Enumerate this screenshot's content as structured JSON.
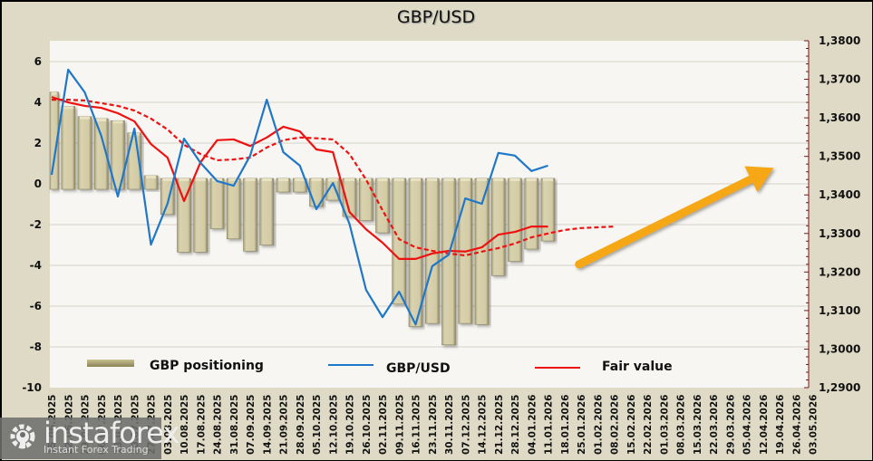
{
  "chart_data": {
    "type": "bar",
    "title": "GBP/USD",
    "xlabel": "",
    "ylabel_left": "",
    "ylabel_right": "",
    "left_axis": {
      "min": -10,
      "max": 7,
      "ticks": [
        6,
        4,
        2,
        0,
        -2,
        -4,
        -6,
        -8,
        -10
      ],
      "tick_labels": [
        "6",
        "4",
        "2",
        "0",
        "-2",
        "-4",
        "-6",
        "-8",
        "-10"
      ]
    },
    "right_axis": {
      "min": 1.29,
      "max": 1.38,
      "ticks": [
        1.38,
        1.37,
        1.36,
        1.35,
        1.34,
        1.33,
        1.32,
        1.31,
        1.3,
        1.29
      ],
      "tick_labels": [
        "1,3800",
        "1,3700",
        "1,3600",
        "1,3500",
        "1,3400",
        "1,3300",
        "1,3200",
        "1,3100",
        "1,3000",
        "1,2900"
      ]
    },
    "grid": true,
    "categories": [
      "15.06.2025",
      "22.06.2025",
      "29.06.2025",
      "06.07.2025",
      "13.07.2025",
      "20.07.2025",
      "27.07.2025",
      "03.08.2025",
      "10.08.2025",
      "17.08.2025",
      "24.08.2025",
      "31.08.2025",
      "07.09.2025",
      "14.09.2025",
      "21.09.2025",
      "28.09.2025",
      "05.10.2025",
      "12.10.2025",
      "19.10.2025",
      "26.10.2025",
      "02.11.2025",
      "09.11.2025",
      "16.11.2025",
      "23.11.2025",
      "30.11.2025",
      "07.12.2025",
      "14.12.2025",
      "21.12.2025",
      "28.12.2025",
      "04.01.2026",
      "11.01.2026",
      "18.01.2026",
      "25.01.2026",
      "01.02.2026",
      "08.02.2026",
      "15.02.2026",
      "22.02.2026",
      "01.03.2026",
      "08.03.2026",
      "15.03.2026",
      "22.03.2026",
      "29.03.2026",
      "05.04.2026",
      "12.04.2026",
      "19.04.2026",
      "26.04.2026",
      "03.05.2026"
    ],
    "series": [
      {
        "name": "GBP positioning",
        "type": "bar",
        "axis": "left",
        "color": "#c9c19a",
        "values": [
          4.5,
          3.8,
          3.3,
          3.2,
          3.1,
          2.5,
          0.4,
          -1.5,
          -3.35,
          -3.35,
          -2.2,
          -2.7,
          -3.3,
          -3.0,
          -0.4,
          -0.4,
          -1.1,
          -0.8,
          -1.6,
          -1.8,
          -2.4,
          -5.9,
          -7.0,
          -6.85,
          -7.9,
          -6.85,
          -6.9,
          -4.5,
          -3.8,
          -3.2,
          -2.8
        ]
      },
      {
        "name": "GBP/USD",
        "type": "line",
        "axis": "right",
        "color": "#1f77c8",
        "values": [
          1.3452,
          1.3725,
          1.3666,
          1.3553,
          1.3396,
          1.3572,
          1.3271,
          1.3377,
          1.3546,
          1.3483,
          1.3436,
          1.3424,
          1.3502,
          1.3647,
          1.3511,
          1.3476,
          1.3363,
          1.3431,
          1.3325,
          1.3154,
          1.3083,
          1.3149,
          1.3064,
          1.3215,
          1.3245,
          1.3391,
          1.3377,
          1.3509,
          1.3502,
          1.3462,
          1.3476
        ]
      },
      {
        "name": "Fair value",
        "type": "line",
        "axis": "right",
        "color": "#ee1111",
        "values": [
          1.3654,
          1.364,
          1.3631,
          1.3626,
          1.3612,
          1.3591,
          1.3532,
          1.3497,
          1.3384,
          1.3485,
          1.3542,
          1.3544,
          1.3527,
          1.3549,
          1.3577,
          1.3565,
          1.3518,
          1.3511,
          1.3356,
          1.3311,
          1.3276,
          1.3234,
          1.3234,
          1.3248,
          1.3255,
          1.3253,
          1.3264,
          1.3297,
          1.3304,
          1.3318,
          1.3318
        ]
      },
      {
        "name": "Fair value trend",
        "type": "line",
        "style": "dashed",
        "axis": "right",
        "color": "#ee1111",
        "in_legend": false,
        "values": [
          1.3647,
          1.3647,
          1.3645,
          1.3638,
          1.3631,
          1.3619,
          1.3598,
          1.357,
          1.353,
          1.3506,
          1.349,
          1.3492,
          1.3497,
          1.3523,
          1.3542,
          1.3549,
          1.3547,
          1.3544,
          1.3506,
          1.344,
          1.336,
          1.3285,
          1.3264,
          1.3255,
          1.3248,
          1.3243,
          1.3253,
          1.3262,
          1.3274,
          1.329,
          1.33,
          1.3309,
          1.3314,
          1.3316,
          1.3318
        ]
      }
    ],
    "legend": {
      "placement": "bottom",
      "entries": [
        "GBP positioning",
        "GBP/USD",
        "Fair value"
      ]
    },
    "annotations": [
      {
        "type": "arrow",
        "color": "#f5a718",
        "direction": "up-right",
        "from": {
          "category": "18.01.2026",
          "right_value": 1.322
        },
        "to": {
          "category": "05.04.2026",
          "right_value": 1.347
        }
      }
    ]
  },
  "watermark": {
    "brand": "instaforex",
    "tagline": "Instant Forex Trading"
  }
}
